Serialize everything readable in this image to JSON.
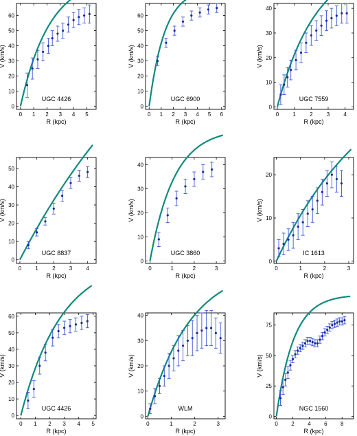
{
  "chart_data": [
    {
      "type": "scatter",
      "label": "UGC 4426",
      "xlabel": "R (kpc)",
      "ylabel": "V (km/s)",
      "xlim": [
        -0.3,
        5.7
      ],
      "ylim": [
        -2,
        68
      ],
      "xticks": [
        0,
        1,
        2,
        3,
        4,
        5
      ],
      "yticks": [
        0,
        10,
        20,
        30,
        40,
        50,
        60
      ],
      "points": [
        [
          0.5,
          14,
          8
        ],
        [
          0.9,
          25,
          7
        ],
        [
          1.3,
          31,
          6
        ],
        [
          1.7,
          36,
          6
        ],
        [
          2.1,
          40,
          5
        ],
        [
          2.4,
          45,
          5
        ],
        [
          2.8,
          48,
          5
        ],
        [
          3.2,
          50,
          5
        ],
        [
          3.6,
          54,
          5
        ],
        [
          4.0,
          57,
          5
        ],
        [
          4.4,
          59,
          5
        ],
        [
          4.8,
          60,
          5
        ],
        [
          5.2,
          61,
          6
        ]
      ],
      "model": {
        "vmax": 86,
        "rc": 2.2,
        "rmax": 5.6
      }
    },
    {
      "type": "scatter",
      "label": "UGC 6900",
      "xlabel": "R (kpc)",
      "ylabel": "V (km/s)",
      "xlim": [
        -0.3,
        6.3
      ],
      "ylim": [
        -2,
        68
      ],
      "xticks": [
        0,
        1,
        2,
        3,
        4,
        5,
        6
      ],
      "yticks": [
        0,
        10,
        20,
        30,
        40,
        50,
        60
      ],
      "points": [
        [
          0.7,
          30,
          3
        ],
        [
          1.4,
          42,
          3
        ],
        [
          2.1,
          50,
          3
        ],
        [
          2.8,
          56,
          3
        ],
        [
          3.5,
          60,
          3
        ],
        [
          4.2,
          62,
          3
        ],
        [
          4.9,
          64,
          3
        ],
        [
          5.6,
          65,
          3
        ]
      ],
      "model": {
        "vmax": 78,
        "rc": 1.3,
        "rmax": 5.9
      }
    },
    {
      "type": "scatter",
      "label": "UGC 7559",
      "xlabel": "R (kpc)",
      "ylabel": "V (km/s)",
      "xlim": [
        -0.2,
        4.5
      ],
      "ylim": [
        -1,
        42
      ],
      "xticks": [
        0,
        1,
        2,
        3,
        4
      ],
      "yticks": [
        0,
        10,
        20,
        30,
        40
      ],
      "points": [
        [
          0.2,
          5,
          4
        ],
        [
          0.4,
          9,
          4
        ],
        [
          0.6,
          12,
          4
        ],
        [
          0.8,
          15,
          4
        ],
        [
          1.1,
          19,
          4
        ],
        [
          1.4,
          22,
          4
        ],
        [
          1.7,
          26,
          4
        ],
        [
          2.0,
          29,
          4
        ],
        [
          2.3,
          31,
          4
        ],
        [
          2.6,
          33,
          4
        ],
        [
          2.9,
          35,
          4
        ],
        [
          3.2,
          36,
          4
        ],
        [
          3.5,
          37,
          4
        ],
        [
          3.8,
          38,
          4
        ],
        [
          4.1,
          38,
          4
        ]
      ],
      "model": {
        "vmax": 60,
        "rc": 2.3,
        "rmax": 4.3
      }
    },
    {
      "type": "scatter",
      "label": "UGC 8837",
      "xlabel": "R (kpc)",
      "ylabel": "V (km/s)",
      "xlim": [
        -0.2,
        4.5
      ],
      "ylim": [
        -2,
        56
      ],
      "xticks": [
        0,
        1,
        2,
        3,
        4
      ],
      "yticks": [
        0,
        10,
        20,
        30,
        40,
        50
      ],
      "points": [
        [
          0.5,
          8,
          2
        ],
        [
          1.0,
          15,
          2
        ],
        [
          1.5,
          21,
          2
        ],
        [
          2.0,
          28,
          3
        ],
        [
          2.5,
          35,
          3
        ],
        [
          3.0,
          42,
          3
        ],
        [
          3.5,
          46,
          3
        ],
        [
          4.0,
          48,
          3
        ]
      ],
      "model": {
        "vmax": 180,
        "rc": 10,
        "rmax": 4.3
      }
    },
    {
      "type": "scatter",
      "label": "UGC 3860",
      "xlabel": "R (kpc)",
      "ylabel": "V (km/s)",
      "xlim": [
        -0.2,
        3.4
      ],
      "ylim": [
        -1,
        43
      ],
      "xticks": [
        0,
        1,
        2,
        3
      ],
      "yticks": [
        0,
        10,
        20,
        30,
        40
      ],
      "points": [
        [
          0.4,
          9,
          3
        ],
        [
          0.8,
          19,
          3
        ],
        [
          1.2,
          26,
          3
        ],
        [
          1.6,
          31,
          3
        ],
        [
          2.0,
          34,
          3
        ],
        [
          2.4,
          37,
          3
        ],
        [
          2.8,
          38,
          3
        ]
      ],
      "model": {
        "vmax": 55,
        "rc": 1.1,
        "rmax": 3.3
      }
    },
    {
      "type": "scatter",
      "label": "IC 1613",
      "xlabel": "R (kpc)",
      "ylabel": "V (km/s)",
      "xlim": [
        -0.1,
        3.2
      ],
      "ylim": [
        -0.5,
        24
      ],
      "xticks": [
        0,
        1,
        2,
        3
      ],
      "yticks": [
        0,
        10,
        20
      ],
      "points": [
        [
          0.1,
          3,
          2
        ],
        [
          0.3,
          4,
          2.5
        ],
        [
          0.5,
          5,
          2.5
        ],
        [
          0.7,
          6,
          3
        ],
        [
          0.9,
          8,
          3
        ],
        [
          1.1,
          9,
          3
        ],
        [
          1.3,
          11,
          3
        ],
        [
          1.5,
          12,
          3
        ],
        [
          1.7,
          14,
          3
        ],
        [
          1.9,
          16,
          3
        ],
        [
          2.1,
          18,
          3
        ],
        [
          2.3,
          20,
          3
        ],
        [
          2.5,
          19,
          3
        ],
        [
          2.7,
          18,
          3
        ]
      ],
      "model": {
        "vmax": 48,
        "rc": 4.0,
        "rmax": 3.1
      }
    },
    {
      "type": "scatter",
      "label": "UGC 4426",
      "xlabel": "R (kpc)",
      "ylabel": "V (km/s)",
      "xlim": [
        -0.3,
        5.2
      ],
      "ylim": [
        -2,
        62
      ],
      "xticks": [
        0,
        1,
        2,
        3,
        4,
        5
      ],
      "yticks": [
        0,
        10,
        20,
        30,
        40,
        50,
        60
      ],
      "points": [
        [
          0.5,
          9,
          5
        ],
        [
          0.9,
          16,
          5
        ],
        [
          1.3,
          30,
          5
        ],
        [
          1.7,
          38,
          5
        ],
        [
          2.2,
          47,
          5
        ],
        [
          2.6,
          51,
          4
        ],
        [
          3.0,
          53,
          4
        ],
        [
          3.4,
          54,
          4
        ],
        [
          3.8,
          55,
          4
        ],
        [
          4.2,
          56,
          4
        ],
        [
          4.6,
          57,
          4
        ]
      ],
      "model": {
        "vmax": 95,
        "rc": 2.8,
        "rmax": 4.9
      }
    },
    {
      "type": "scatter",
      "label": "WLM",
      "xlabel": "R (kpc)",
      "ylabel": "V (km/s)",
      "xlim": [
        -0.1,
        3.3
      ],
      "ylim": [
        -1,
        41
      ],
      "xticks": [
        0,
        1,
        2,
        3
      ],
      "yticks": [
        0,
        10,
        20,
        30,
        40
      ],
      "points": [
        [
          0.1,
          3,
          2
        ],
        [
          0.3,
          8,
          3
        ],
        [
          0.5,
          12,
          3
        ],
        [
          0.7,
          16,
          4
        ],
        [
          0.9,
          20,
          5
        ],
        [
          1.1,
          23,
          5
        ],
        [
          1.3,
          26,
          6
        ],
        [
          1.5,
          28,
          6
        ],
        [
          1.7,
          30,
          6
        ],
        [
          1.9,
          31,
          7
        ],
        [
          2.1,
          33,
          7
        ],
        [
          2.3,
          34,
          7
        ],
        [
          2.5,
          35,
          7
        ],
        [
          2.7,
          35,
          7
        ],
        [
          2.9,
          33,
          6
        ],
        [
          3.1,
          31,
          6
        ]
      ],
      "model": {
        "vmax": 60,
        "rc": 1.8,
        "rmax": 3.2
      }
    },
    {
      "type": "scatter",
      "label": "NGC 1560",
      "xlabel": "R (kpc)",
      "ylabel": "V (km/s)",
      "xlim": [
        -0.3,
        9.4
      ],
      "ylim": [
        -2,
        85
      ],
      "xticks": [
        0,
        2,
        4,
        6,
        8
      ],
      "yticks": [
        0,
        25,
        50,
        75
      ],
      "points": [
        [
          0.5,
          15,
          6
        ],
        [
          0.8,
          24,
          6
        ],
        [
          1.1,
          30,
          5
        ],
        [
          1.4,
          36,
          5
        ],
        [
          1.7,
          42,
          4
        ],
        [
          2.0,
          47,
          3
        ],
        [
          2.3,
          51,
          3
        ],
        [
          2.6,
          54,
          3
        ],
        [
          2.9,
          56,
          3
        ],
        [
          3.2,
          58,
          3
        ],
        [
          3.5,
          60,
          3
        ],
        [
          3.8,
          62,
          3
        ],
        [
          4.1,
          62,
          3
        ],
        [
          4.4,
          61,
          3
        ],
        [
          4.7,
          60,
          3
        ],
        [
          5.0,
          60,
          3
        ],
        [
          5.3,
          63,
          3
        ],
        [
          5.6,
          66,
          3
        ],
        [
          5.9,
          69,
          3
        ],
        [
          6.2,
          71,
          3
        ],
        [
          6.5,
          73,
          3
        ],
        [
          6.8,
          75,
          3
        ],
        [
          7.1,
          76,
          3
        ],
        [
          7.4,
          77,
          3
        ],
        [
          7.7,
          78,
          3
        ],
        [
          8.0,
          78,
          3
        ],
        [
          8.3,
          79,
          3
        ]
      ],
      "model": {
        "vmax": 100,
        "rc": 2.1,
        "rmax": 9.0
      }
    }
  ]
}
